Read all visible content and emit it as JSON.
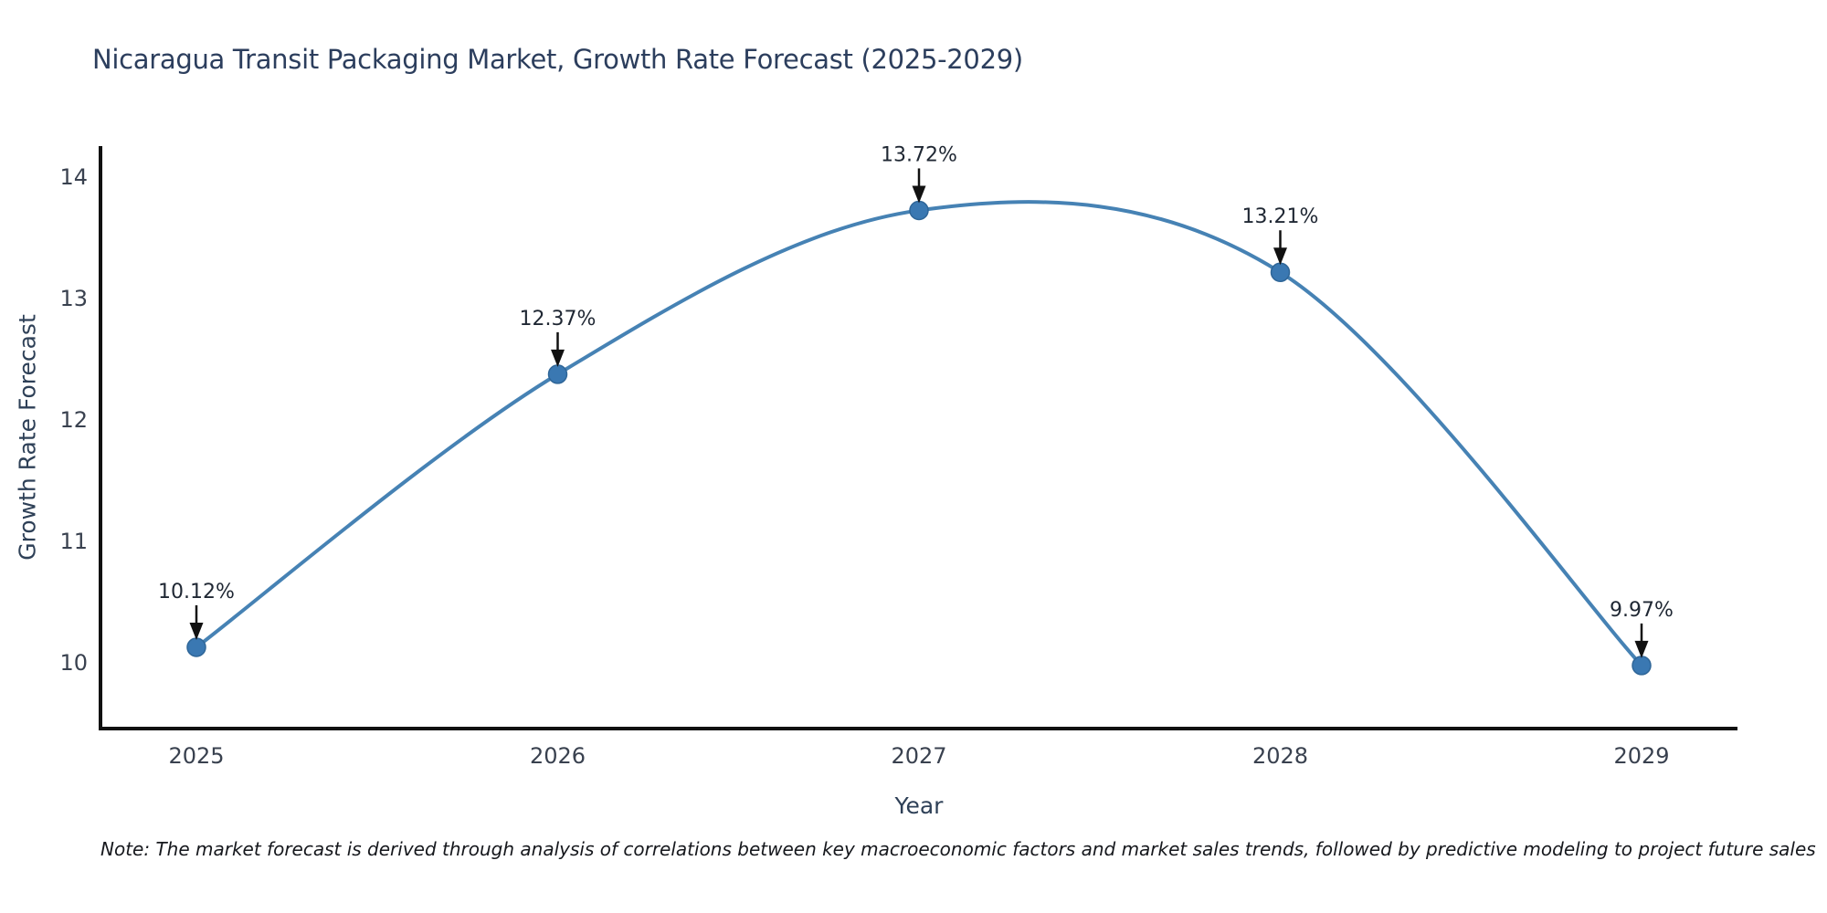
{
  "title": "Nicaragua Transit Packaging Market, Growth Rate Forecast (2025-2029)",
  "note": "Note: The market forecast is derived through analysis of correlations between key macroeconomic factors and market sales trends, followed by predictive modeling to project future sales",
  "chart_data": {
    "type": "line",
    "title": "Nicaragua Transit Packaging Market, Growth Rate Forecast (2025-2029)",
    "xlabel": "Year",
    "ylabel": "Growth Rate Forecast",
    "categories": [
      "2025",
      "2026",
      "2027",
      "2028",
      "2029"
    ],
    "values": [
      10.12,
      12.37,
      13.72,
      13.21,
      9.97
    ],
    "point_labels": [
      "10.12%",
      "12.37%",
      "13.72%",
      "13.21%",
      "9.97%"
    ],
    "yticks": [
      10,
      11,
      12,
      13,
      14
    ],
    "ylim": [
      9.45,
      14.25
    ],
    "grid": false,
    "legend": false,
    "smooth": true,
    "colors": {
      "line": "#4682b4",
      "marker": "#3a78b2",
      "marker_edge": "#2f6698",
      "spine": "#111111",
      "tick_label": "#39414f",
      "annotation_text": "#1f2733",
      "annotation_arrow": "#111111",
      "title": "#2c3e5d",
      "axis_label": "#2e4057",
      "note_text": "#16181d"
    }
  }
}
